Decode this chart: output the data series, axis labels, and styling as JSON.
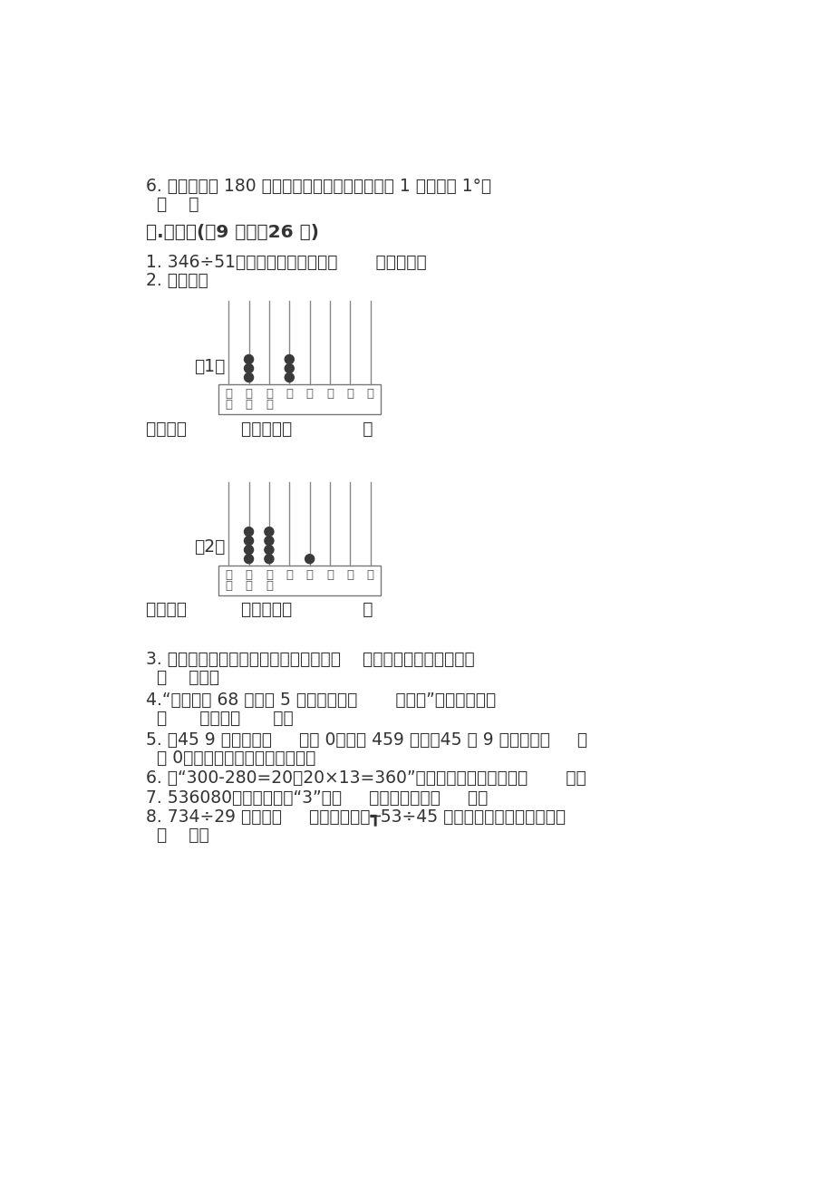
{
  "bg_color": "#ffffff",
  "text_color": "#333333",
  "line6_text": "6. 把半圆分成 180 份，每一份所对的角的大小是 1 度，记作 1°。",
  "line6b_text": "（    ）",
  "section3_title": "三.填空题(兲9 题，內26 分)",
  "q1_text": "1. 346÷51，可以将被除数看做（       ）来试商。",
  "q2_text": "2. 填一填。",
  "abacus1_label": "（1）",
  "abacus2_label": "（2）",
  "write_read1": "写作：（          ）读作：（             ）",
  "write_read2": "写作：（          ）读作：（             ）",
  "q3_text": "3. 长方形，正方形和平行四边形都是由（    ）围成的图形，它们都是",
  "q3b_text": "（    ）形。",
  "q4_text": "4.“每个足球 68 元，买 5 个足球要花（       ）元。”这道题中已知",
  "q4b_text": "（      ），求（      ）。",
  "q5_text": "5. 在45 9 后面添上（     ）个 0，就是 459 万；在45 和 9 中间添上（     ）",
  "q5b_text": "个 0，才能成为四百五十万零九。",
  "q6_text": "6. 把“300-280=20，20×13=360”改写成一个综合算式是（       ）。",
  "q7_text": "7. 536080，这个数中的“3”在（     ）位上，表示（     ）。",
  "q8_text": "8. 734÷29 的商是（     ）位数；要使┱53÷45 的商是一位数，口里可以填",
  "q8b_text": "（    ）。"
}
